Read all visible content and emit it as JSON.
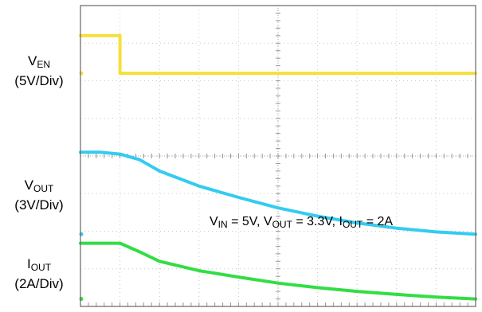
{
  "chart_data": {
    "type": "line",
    "title": "",
    "grid": true,
    "x_divisions": 10,
    "y_divisions": 8,
    "channel_labels": [
      {
        "symbol": "V",
        "subscript": "EN",
        "scale": "(5V/Div)"
      },
      {
        "symbol": "V",
        "subscript": "OUT",
        "scale": "(3V/Div)"
      },
      {
        "symbol": "I",
        "subscript": "OUT",
        "scale": "(2A/Div)"
      }
    ],
    "annotation": [
      {
        "symbol": "V",
        "subscript": "IN",
        "rest": " = 5V, "
      },
      {
        "symbol": "V",
        "subscript": "OUT",
        "rest": " = 3.3V, "
      },
      {
        "symbol": "I",
        "subscript": "OUT",
        "rest": " = 2A"
      }
    ],
    "series": [
      {
        "color": "#f5e03a",
        "x": [
          0,
          1.0,
          1.0,
          10
        ],
        "y": [
          7.2,
          7.2,
          6.2,
          6.2
        ]
      },
      {
        "color": "#33ccf0",
        "x": [
          0,
          0.5,
          1.0,
          1.5,
          2.0,
          3.0,
          4.0,
          5.0,
          6.0,
          7.0,
          8.0,
          9.0,
          10.0
        ],
        "y": [
          4.1,
          4.1,
          4.05,
          3.9,
          3.6,
          3.2,
          2.9,
          2.62,
          2.4,
          2.22,
          2.08,
          1.98,
          1.92
        ]
      },
      {
        "color": "#33dd44",
        "x": [
          0,
          0.5,
          1.0,
          1.5,
          2.0,
          3.0,
          4.0,
          5.0,
          6.0,
          7.0,
          8.0,
          9.0,
          10.0
        ],
        "y": [
          1.68,
          1.68,
          1.68,
          1.45,
          1.2,
          0.95,
          0.78,
          0.62,
          0.5,
          0.4,
          0.32,
          0.25,
          0.2
        ]
      }
    ]
  }
}
